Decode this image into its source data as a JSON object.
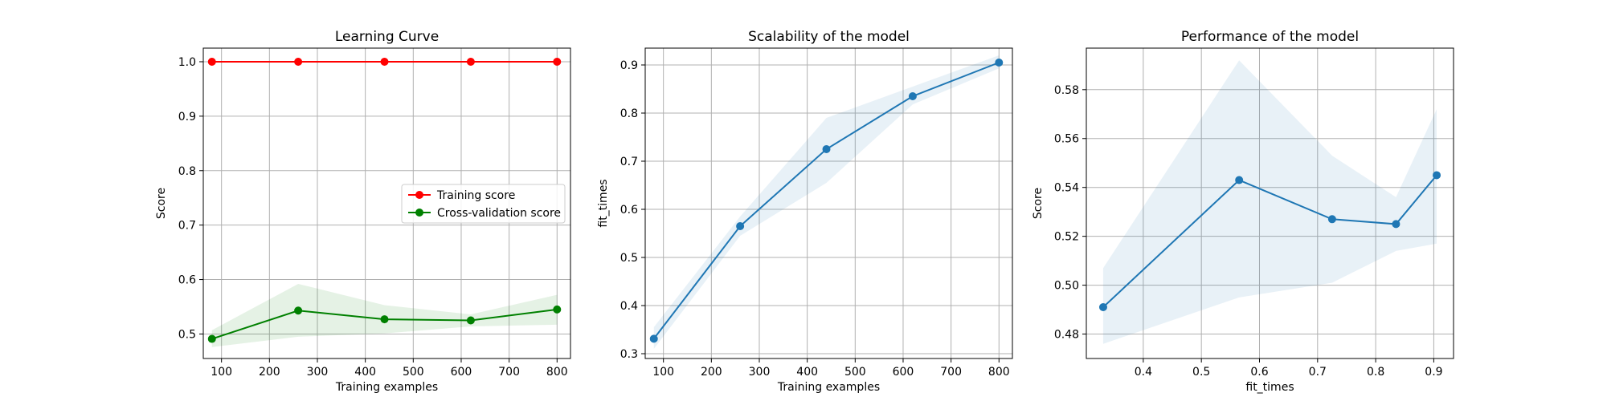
{
  "chart_data": [
    {
      "type": "line",
      "title": "Learning Curve",
      "xlabel": "Training examples",
      "ylabel": "Score",
      "xlim": [
        62,
        828
      ],
      "ylim": [
        0.455,
        1.025
      ],
      "xticks": [
        100,
        200,
        300,
        400,
        500,
        600,
        700,
        800
      ],
      "yticks": [
        0.5,
        0.6,
        0.7,
        0.8,
        0.9,
        1.0
      ],
      "xtick_labels": [
        "100",
        "200",
        "300",
        "400",
        "500",
        "600",
        "700",
        "800"
      ],
      "ytick_labels": [
        "0.5",
        "0.6",
        "0.7",
        "0.8",
        "0.9",
        "1.0"
      ],
      "grid": true,
      "legend_position": "center-right",
      "x": [
        80,
        260,
        440,
        620,
        800
      ],
      "series": [
        {
          "name": "Training score",
          "color": "#ff0000",
          "values": [
            1.0,
            1.0,
            1.0,
            1.0,
            1.0
          ],
          "band_lower": [
            1.0,
            1.0,
            1.0,
            1.0,
            1.0
          ],
          "band_upper": [
            1.0,
            1.0,
            1.0,
            1.0,
            1.0
          ]
        },
        {
          "name": "Cross-validation score",
          "color": "#008000",
          "values": [
            0.491,
            0.543,
            0.527,
            0.525,
            0.545
          ],
          "band_lower": [
            0.476,
            0.495,
            0.501,
            0.514,
            0.517
          ],
          "band_upper": [
            0.507,
            0.592,
            0.553,
            0.536,
            0.572
          ]
        }
      ]
    },
    {
      "type": "line",
      "title": "Scalability of the model",
      "xlabel": "Training examples",
      "ylabel": "fit_times",
      "xlim": [
        62,
        828
      ],
      "ylim": [
        0.29,
        0.935
      ],
      "xticks": [
        100,
        200,
        300,
        400,
        500,
        600,
        700,
        800
      ],
      "yticks": [
        0.3,
        0.4,
        0.5,
        0.6,
        0.7,
        0.8,
        0.9
      ],
      "xtick_labels": [
        "100",
        "200",
        "300",
        "400",
        "500",
        "600",
        "700",
        "800"
      ],
      "ytick_labels": [
        "0.3",
        "0.4",
        "0.5",
        "0.6",
        "0.7",
        "0.8",
        "0.9"
      ],
      "grid": true,
      "x": [
        80,
        260,
        440,
        620,
        800
      ],
      "series": [
        {
          "color": "#1f77b4",
          "values": [
            0.331,
            0.565,
            0.725,
            0.835,
            0.905
          ],
          "band_lower": [
            0.31,
            0.545,
            0.655,
            0.818,
            0.893
          ],
          "band_upper": [
            0.355,
            0.585,
            0.79,
            0.855,
            0.92
          ]
        }
      ]
    },
    {
      "type": "line",
      "title": "Performance of the model",
      "xlabel": "fit_times",
      "ylabel": "Score",
      "xlim": [
        0.302,
        0.934
      ],
      "ylim": [
        0.47,
        0.597
      ],
      "xticks": [
        0.4,
        0.5,
        0.6,
        0.7,
        0.8,
        0.9
      ],
      "yticks": [
        0.48,
        0.5,
        0.52,
        0.54,
        0.56,
        0.58
      ],
      "xtick_labels": [
        "0.4",
        "0.5",
        "0.6",
        "0.7",
        "0.8",
        "0.9"
      ],
      "ytick_labels": [
        "0.48",
        "0.50",
        "0.52",
        "0.54",
        "0.56",
        "0.58"
      ],
      "grid": true,
      "x": [
        0.331,
        0.565,
        0.725,
        0.835,
        0.905
      ],
      "series": [
        {
          "color": "#1f77b4",
          "values": [
            0.491,
            0.543,
            0.527,
            0.525,
            0.545
          ],
          "band_lower": [
            0.476,
            0.495,
            0.501,
            0.514,
            0.517
          ],
          "band_upper": [
            0.507,
            0.592,
            0.553,
            0.536,
            0.572
          ]
        }
      ]
    }
  ]
}
